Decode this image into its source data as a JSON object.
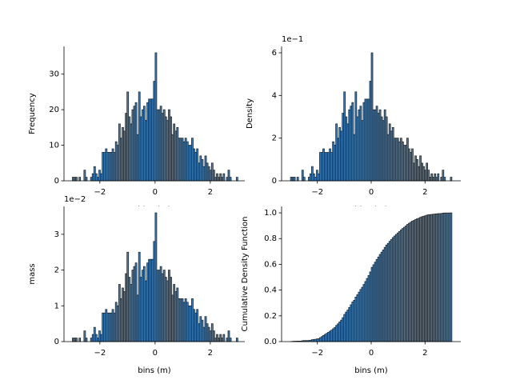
{
  "chart_data": [
    {
      "type": "histogram",
      "xlabel": "bins (m)",
      "ylabel": "Frequency",
      "bins": [
        -3,
        -2.94,
        -2.88,
        -2.82,
        -2.76,
        -2.7,
        -2.64,
        -2.58,
        -2.52,
        -2.46,
        -2.4,
        -2.34,
        -2.28,
        -2.22,
        -2.16,
        -2.1,
        -2.04,
        -1.98,
        -1.92,
        -1.86,
        -1.8,
        -1.74,
        -1.68,
        -1.62,
        -1.56,
        -1.5,
        -1.44,
        -1.38,
        -1.32,
        -1.26,
        -1.2,
        -1.14,
        -1.08,
        -1.02,
        -0.96,
        -0.9,
        -0.84,
        -0.78,
        -0.72,
        -0.66,
        -0.6,
        -0.54,
        -0.48,
        -0.42,
        -0.36,
        -0.3,
        -0.24,
        -0.18,
        -0.12,
        -0.06,
        0,
        0.06,
        0.12,
        0.18,
        0.24,
        0.3,
        0.36,
        0.42,
        0.48,
        0.54,
        0.6,
        0.66,
        0.72,
        0.78,
        0.84,
        0.9,
        0.96,
        1.02,
        1.08,
        1.14,
        1.2,
        1.26,
        1.32,
        1.38,
        1.44,
        1.5,
        1.56,
        1.62,
        1.68,
        1.74,
        1.8,
        1.86,
        1.92,
        1.98,
        2.04,
        2.1,
        2.16,
        2.22,
        2.28,
        2.34,
        2.4,
        2.46,
        2.52,
        2.58,
        2.64,
        2.7,
        2.76,
        2.82,
        2.88,
        2.94,
        3
      ],
      "values": [
        1,
        1,
        1,
        0,
        1,
        0,
        0,
        3,
        1,
        0,
        0,
        1,
        2,
        4,
        2,
        1,
        3,
        2,
        8,
        8,
        9,
        8,
        8,
        8,
        9,
        8,
        11,
        10,
        16,
        12,
        15,
        14,
        19,
        25,
        18,
        16,
        20,
        21,
        22,
        13,
        25,
        18,
        20,
        21,
        17,
        22,
        23,
        23,
        23,
        28,
        36,
        20,
        20,
        21,
        19,
        20,
        18,
        17,
        20,
        18,
        13,
        16,
        14,
        15,
        12,
        12,
        12,
        11,
        12,
        11,
        10,
        10,
        12,
        9,
        8,
        9,
        5,
        7,
        6,
        4,
        7,
        5,
        4,
        3,
        5,
        3,
        1,
        2,
        1,
        2,
        1,
        2,
        0,
        1,
        3,
        1,
        0,
        0,
        0,
        1
      ],
      "color": "#3f7fb8",
      "edgecolor": "#1c1c1c",
      "xlim": [
        -3.3,
        3.25
      ],
      "xticks": [
        {
          "value": -2,
          "label": "−2"
        },
        0,
        2
      ],
      "ylim": [
        0,
        37.8
      ],
      "yticks": [
        0,
        10,
        20,
        30
      ]
    },
    {
      "type": "histogram",
      "xlabel": "bins (m)",
      "ylabel": "Density",
      "y_offset_text": "1e−1",
      "bins": [
        -3,
        -2.94,
        -2.88,
        -2.82,
        -2.76,
        -2.7,
        -2.64,
        -2.58,
        -2.52,
        -2.46,
        -2.4,
        -2.34,
        -2.28,
        -2.22,
        -2.16,
        -2.1,
        -2.04,
        -1.98,
        -1.92,
        -1.86,
        -1.8,
        -1.74,
        -1.68,
        -1.62,
        -1.56,
        -1.5,
        -1.44,
        -1.38,
        -1.32,
        -1.26,
        -1.2,
        -1.14,
        -1.08,
        -1.02,
        -0.96,
        -0.9,
        -0.84,
        -0.78,
        -0.72,
        -0.66,
        -0.6,
        -0.54,
        -0.48,
        -0.42,
        -0.36,
        -0.3,
        -0.24,
        -0.18,
        -0.12,
        -0.06,
        0,
        0.06,
        0.12,
        0.18,
        0.24,
        0.3,
        0.36,
        0.42,
        0.48,
        0.54,
        0.6,
        0.66,
        0.72,
        0.78,
        0.84,
        0.9,
        0.96,
        1.02,
        1.08,
        1.14,
        1.2,
        1.26,
        1.32,
        1.38,
        1.44,
        1.5,
        1.56,
        1.62,
        1.68,
        1.74,
        1.8,
        1.86,
        1.92,
        1.98,
        2.04,
        2.1,
        2.16,
        2.22,
        2.28,
        2.34,
        2.4,
        2.46,
        2.52,
        2.58,
        2.64,
        2.7,
        2.76,
        2.82,
        2.88,
        2.94,
        3
      ],
      "values": [
        0.017,
        0.017,
        0.017,
        0,
        0.017,
        0,
        0,
        0.05,
        0.017,
        0,
        0,
        0.017,
        0.033,
        0.067,
        0.033,
        0.017,
        0.05,
        0.033,
        0.133,
        0.133,
        0.15,
        0.133,
        0.133,
        0.133,
        0.15,
        0.133,
        0.183,
        0.167,
        0.267,
        0.2,
        0.25,
        0.233,
        0.317,
        0.417,
        0.3,
        0.267,
        0.333,
        0.35,
        0.367,
        0.217,
        0.417,
        0.3,
        0.333,
        0.35,
        0.283,
        0.367,
        0.383,
        0.383,
        0.383,
        0.467,
        0.6,
        0.333,
        0.333,
        0.35,
        0.317,
        0.333,
        0.3,
        0.283,
        0.333,
        0.3,
        0.217,
        0.267,
        0.233,
        0.25,
        0.2,
        0.2,
        0.2,
        0.183,
        0.2,
        0.183,
        0.167,
        0.167,
        0.2,
        0.15,
        0.133,
        0.15,
        0.083,
        0.117,
        0.1,
        0.067,
        0.117,
        0.083,
        0.067,
        0.05,
        0.083,
        0.05,
        0.017,
        0.033,
        0.017,
        0.033,
        0.017,
        0.033,
        0,
        0.017,
        0.05,
        0.017,
        0,
        0,
        0,
        0.017
      ],
      "color": "#3f7fb8",
      "edgecolor": "#1c1c1c",
      "xlim": [
        -3.33,
        3.33
      ],
      "xticks": [
        {
          "value": -2,
          "label": "−2"
        },
        0,
        2
      ],
      "ylim": [
        0,
        0.63
      ],
      "yticks": [
        {
          "value": 0,
          "label": "0"
        },
        {
          "value": 0.2,
          "label": "2"
        },
        {
          "value": 0.4,
          "label": "4"
        },
        {
          "value": 0.6,
          "label": "6"
        }
      ]
    },
    {
      "type": "histogram",
      "xlabel": "bins (m)",
      "ylabel": "mass",
      "y_offset_text": "1e−2",
      "bins": [
        -3,
        -2.94,
        -2.88,
        -2.82,
        -2.76,
        -2.7,
        -2.64,
        -2.58,
        -2.52,
        -2.46,
        -2.4,
        -2.34,
        -2.28,
        -2.22,
        -2.16,
        -2.1,
        -2.04,
        -1.98,
        -1.92,
        -1.86,
        -1.8,
        -1.74,
        -1.68,
        -1.62,
        -1.56,
        -1.5,
        -1.44,
        -1.38,
        -1.32,
        -1.26,
        -1.2,
        -1.14,
        -1.08,
        -1.02,
        -0.96,
        -0.9,
        -0.84,
        -0.78,
        -0.72,
        -0.66,
        -0.6,
        -0.54,
        -0.48,
        -0.42,
        -0.36,
        -0.3,
        -0.24,
        -0.18,
        -0.12,
        -0.06,
        0,
        0.06,
        0.12,
        0.18,
        0.24,
        0.3,
        0.36,
        0.42,
        0.48,
        0.54,
        0.6,
        0.66,
        0.72,
        0.78,
        0.84,
        0.9,
        0.96,
        1.02,
        1.08,
        1.14,
        1.2,
        1.26,
        1.32,
        1.38,
        1.44,
        1.5,
        1.56,
        1.62,
        1.68,
        1.74,
        1.8,
        1.86,
        1.92,
        1.98,
        2.04,
        2.1,
        2.16,
        2.22,
        2.28,
        2.34,
        2.4,
        2.46,
        2.52,
        2.58,
        2.64,
        2.7,
        2.76,
        2.82,
        2.88,
        2.94,
        3
      ],
      "values": [
        0.001,
        0.001,
        0.001,
        0,
        0.001,
        0,
        0,
        0.003,
        0.001,
        0,
        0,
        0.001,
        0.002,
        0.004,
        0.002,
        0.001,
        0.003,
        0.002,
        0.008,
        0.008,
        0.009,
        0.008,
        0.008,
        0.008,
        0.009,
        0.008,
        0.011,
        0.01,
        0.016,
        0.012,
        0.015,
        0.014,
        0.019,
        0.025,
        0.018,
        0.016,
        0.02,
        0.021,
        0.022,
        0.013,
        0.025,
        0.018,
        0.02,
        0.021,
        0.017,
        0.022,
        0.023,
        0.023,
        0.023,
        0.028,
        0.036,
        0.02,
        0.02,
        0.021,
        0.019,
        0.02,
        0.018,
        0.017,
        0.02,
        0.018,
        0.013,
        0.016,
        0.014,
        0.015,
        0.012,
        0.012,
        0.012,
        0.011,
        0.012,
        0.011,
        0.01,
        0.01,
        0.012,
        0.009,
        0.008,
        0.009,
        0.005,
        0.007,
        0.006,
        0.004,
        0.007,
        0.005,
        0.004,
        0.003,
        0.005,
        0.003,
        0.001,
        0.002,
        0.001,
        0.002,
        0.001,
        0.002,
        0,
        0.001,
        0.003,
        0.001,
        0,
        0,
        0,
        0.001
      ],
      "color": "#3f7fb8",
      "edgecolor": "#1c1c1c",
      "xlim": [
        -3.3,
        3.25
      ],
      "xticks": [
        {
          "value": -2,
          "label": "−2"
        },
        0,
        2
      ],
      "ylim": [
        0,
        0.0378
      ],
      "yticks": [
        {
          "value": 0,
          "label": "0"
        },
        {
          "value": 0.01,
          "label": "1"
        },
        {
          "value": 0.02,
          "label": "2"
        },
        {
          "value": 0.03,
          "label": "3"
        }
      ]
    },
    {
      "type": "histogram",
      "xlabel": "bins (m)",
      "ylabel": "Cumulative Density Function",
      "bins": [
        -3,
        -2.94,
        -2.88,
        -2.82,
        -2.76,
        -2.7,
        -2.64,
        -2.58,
        -2.52,
        -2.46,
        -2.4,
        -2.34,
        -2.28,
        -2.22,
        -2.16,
        -2.1,
        -2.04,
        -1.98,
        -1.92,
        -1.86,
        -1.8,
        -1.74,
        -1.68,
        -1.62,
        -1.56,
        -1.5,
        -1.44,
        -1.38,
        -1.32,
        -1.26,
        -1.2,
        -1.14,
        -1.08,
        -1.02,
        -0.96,
        -0.9,
        -0.84,
        -0.78,
        -0.72,
        -0.66,
        -0.6,
        -0.54,
        -0.48,
        -0.42,
        -0.36,
        -0.3,
        -0.24,
        -0.18,
        -0.12,
        -0.06,
        0,
        0.06,
        0.12,
        0.18,
        0.24,
        0.3,
        0.36,
        0.42,
        0.48,
        0.54,
        0.6,
        0.66,
        0.72,
        0.78,
        0.84,
        0.9,
        0.96,
        1.02,
        1.08,
        1.14,
        1.2,
        1.26,
        1.32,
        1.38,
        1.44,
        1.5,
        1.56,
        1.62,
        1.68,
        1.74,
        1.8,
        1.86,
        1.92,
        1.98,
        2.04,
        2.1,
        2.16,
        2.22,
        2.28,
        2.34,
        2.4,
        2.46,
        2.52,
        2.58,
        2.64,
        2.7,
        2.76,
        2.82,
        2.88,
        2.94,
        3
      ],
      "values": [
        0.001,
        0.002,
        0.003,
        0.003,
        0.004,
        0.004,
        0.004,
        0.007,
        0.008,
        0.008,
        0.008,
        0.009,
        0.011,
        0.015,
        0.017,
        0.018,
        0.021,
        0.023,
        0.031,
        0.039,
        0.048,
        0.056,
        0.064,
        0.072,
        0.081,
        0.089,
        0.1,
        0.11,
        0.126,
        0.138,
        0.153,
        0.167,
        0.186,
        0.211,
        0.229,
        0.245,
        0.265,
        0.286,
        0.308,
        0.321,
        0.346,
        0.364,
        0.384,
        0.405,
        0.422,
        0.444,
        0.467,
        0.49,
        0.513,
        0.541,
        0.577,
        0.597,
        0.617,
        0.638,
        0.657,
        0.677,
        0.695,
        0.712,
        0.732,
        0.75,
        0.763,
        0.779,
        0.793,
        0.808,
        0.82,
        0.832,
        0.844,
        0.855,
        0.867,
        0.878,
        0.888,
        0.898,
        0.91,
        0.919,
        0.927,
        0.936,
        0.941,
        0.948,
        0.954,
        0.958,
        0.965,
        0.97,
        0.974,
        0.977,
        0.982,
        0.985,
        0.986,
        0.988,
        0.989,
        0.991,
        0.992,
        0.994,
        0.994,
        0.995,
        0.998,
        0.999,
        0.999,
        0.999,
        0.999,
        1
      ],
      "color": "#3f7fb8",
      "edgecolor": "#1c1c1c",
      "xlim": [
        -3.33,
        3.33
      ],
      "xticks": [
        {
          "value": -2,
          "label": "−2"
        },
        0,
        2
      ],
      "ylim": [
        0,
        1.05
      ],
      "yticks": [
        {
          "value": 0,
          "label": "0.0"
        },
        0.2,
        0.4,
        0.6,
        0.8,
        {
          "value": 1,
          "label": "1.0"
        }
      ]
    }
  ]
}
